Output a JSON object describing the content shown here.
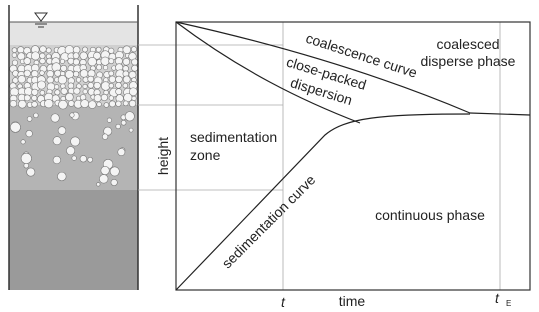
{
  "diagram": {
    "axis_y_label": "height",
    "axis_x_label": "time",
    "tick_t": "t",
    "tick_te": "t",
    "tick_te_sub": "E",
    "regions": {
      "coalesced_1": "coalesced",
      "coalesced_2": "disperse phase",
      "close_packed_1": "close-packed",
      "close_packed_2": "dispersion",
      "sedimentation_1": "sedimentation",
      "sedimentation_2": "zone",
      "continuous": "continuous phase"
    },
    "curves": {
      "coalescence": "coalescence curve",
      "sedimentation": "sedimentation curve"
    }
  }
}
